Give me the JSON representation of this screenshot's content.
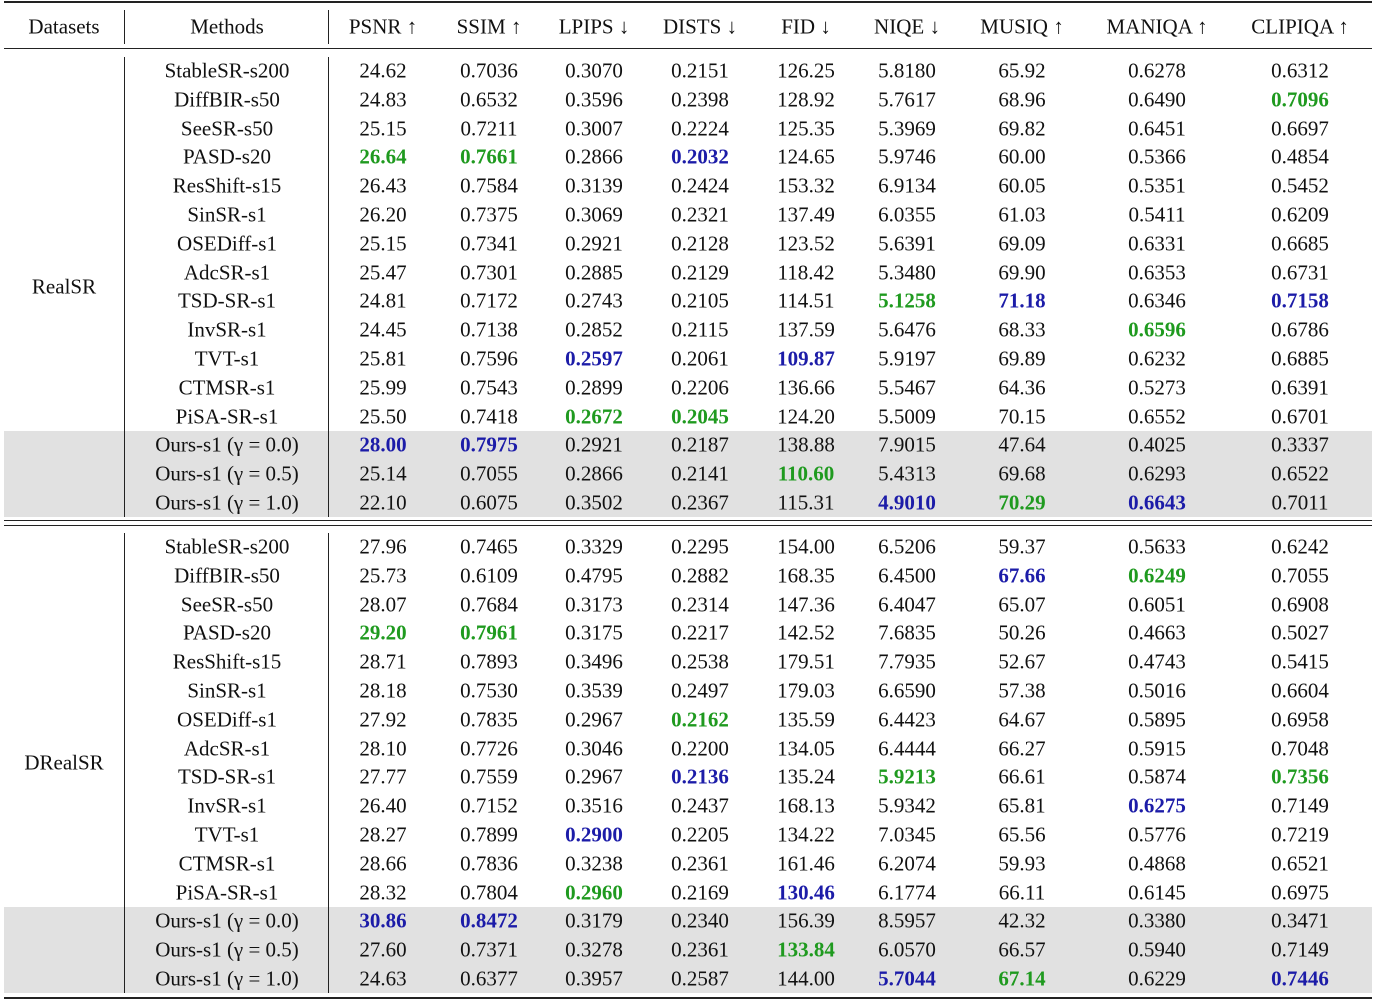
{
  "table": {
    "headers": [
      "Datasets",
      "Methods",
      "PSNR ↑",
      "SSIM ↑",
      "LPIPS ↓",
      "DISTS ↓",
      "FID ↓",
      "NIQE ↓",
      "MUSIQ ↑",
      "MANIQA ↑",
      "CLIPIQA ↑"
    ],
    "styles": {
      "best_color": "#1c1ca8",
      "second_color": "#1f9a1f",
      "shade_color": "#e1e1e1"
    },
    "groups": [
      {
        "dataset": "RealSR",
        "rows": [
          {
            "method": "StableSR-s200",
            "values": [
              "24.62",
              "0.7036",
              "0.3070",
              "0.2151",
              "126.25",
              "5.8180",
              "65.92",
              "0.6278",
              "0.6312"
            ]
          },
          {
            "method": "DiffBIR-s50",
            "values": [
              "24.83",
              "0.6532",
              "0.3596",
              "0.2398",
              "128.92",
              "5.7617",
              "68.96",
              "0.6490",
              "0.7096"
            ],
            "second": [
              8
            ]
          },
          {
            "method": "SeeSR-s50",
            "values": [
              "25.15",
              "0.7211",
              "0.3007",
              "0.2224",
              "125.35",
              "5.3969",
              "69.82",
              "0.6451",
              "0.6697"
            ]
          },
          {
            "method": "PASD-s20",
            "values": [
              "26.64",
              "0.7661",
              "0.2866",
              "0.2032",
              "124.65",
              "5.9746",
              "60.00",
              "0.5366",
              "0.4854"
            ],
            "best": [
              3
            ],
            "second": [
              0,
              1
            ]
          },
          {
            "method": "ResShift-s15",
            "values": [
              "26.43",
              "0.7584",
              "0.3139",
              "0.2424",
              "153.32",
              "6.9134",
              "60.05",
              "0.5351",
              "0.5452"
            ]
          },
          {
            "method": "SinSR-s1",
            "values": [
              "26.20",
              "0.7375",
              "0.3069",
              "0.2321",
              "137.49",
              "6.0355",
              "61.03",
              "0.5411",
              "0.6209"
            ]
          },
          {
            "method": "OSEDiff-s1",
            "values": [
              "25.15",
              "0.7341",
              "0.2921",
              "0.2128",
              "123.52",
              "5.6391",
              "69.09",
              "0.6331",
              "0.6685"
            ]
          },
          {
            "method": "AdcSR-s1",
            "values": [
              "25.47",
              "0.7301",
              "0.2885",
              "0.2129",
              "118.42",
              "5.3480",
              "69.90",
              "0.6353",
              "0.6731"
            ]
          },
          {
            "method": "TSD-SR-s1",
            "values": [
              "24.81",
              "0.7172",
              "0.2743",
              "0.2105",
              "114.51",
              "5.1258",
              "71.18",
              "0.6346",
              "0.7158"
            ],
            "best": [
              6,
              8
            ],
            "second": [
              5
            ]
          },
          {
            "method": "InvSR-s1",
            "values": [
              "24.45",
              "0.7138",
              "0.2852",
              "0.2115",
              "137.59",
              "5.6476",
              "68.33",
              "0.6596",
              "0.6786"
            ],
            "second": [
              7
            ]
          },
          {
            "method": "TVT-s1",
            "values": [
              "25.81",
              "0.7596",
              "0.2597",
              "0.2061",
              "109.87",
              "5.9197",
              "69.89",
              "0.6232",
              "0.6885"
            ],
            "best": [
              2,
              4
            ]
          },
          {
            "method": "CTMSR-s1",
            "values": [
              "25.99",
              "0.7543",
              "0.2899",
              "0.2206",
              "136.66",
              "5.5467",
              "64.36",
              "0.5273",
              "0.6391"
            ]
          },
          {
            "method": "PiSA-SR-s1",
            "values": [
              "25.50",
              "0.7418",
              "0.2672",
              "0.2045",
              "124.20",
              "5.5009",
              "70.15",
              "0.6552",
              "0.6701"
            ],
            "second": [
              2,
              3
            ]
          },
          {
            "method": "Ours-s1 (γ = 0.0)",
            "values": [
              "28.00",
              "0.7975",
              "0.2921",
              "0.2187",
              "138.88",
              "7.9015",
              "47.64",
              "0.4025",
              "0.3337"
            ],
            "best": [
              0,
              1
            ],
            "shaded": true
          },
          {
            "method": "Ours-s1 (γ = 0.5)",
            "values": [
              "25.14",
              "0.7055",
              "0.2866",
              "0.2141",
              "110.60",
              "5.4313",
              "69.68",
              "0.6293",
              "0.6522"
            ],
            "second": [
              4
            ],
            "shaded": true
          },
          {
            "method": "Ours-s1 (γ = 1.0)",
            "values": [
              "22.10",
              "0.6075",
              "0.3502",
              "0.2367",
              "115.31",
              "4.9010",
              "70.29",
              "0.6643",
              "0.7011"
            ],
            "best": [
              5,
              7
            ],
            "second": [
              6
            ],
            "shaded": true
          }
        ]
      },
      {
        "dataset": "DRealSR",
        "rows": [
          {
            "method": "StableSR-s200",
            "values": [
              "27.96",
              "0.7465",
              "0.3329",
              "0.2295",
              "154.00",
              "6.5206",
              "59.37",
              "0.5633",
              "0.6242"
            ]
          },
          {
            "method": "DiffBIR-s50",
            "values": [
              "25.73",
              "0.6109",
              "0.4795",
              "0.2882",
              "168.35",
              "6.4500",
              "67.66",
              "0.6249",
              "0.7055"
            ],
            "best": [
              6
            ],
            "second": [
              7
            ]
          },
          {
            "method": "SeeSR-s50",
            "values": [
              "28.07",
              "0.7684",
              "0.3173",
              "0.2314",
              "147.36",
              "6.4047",
              "65.07",
              "0.6051",
              "0.6908"
            ]
          },
          {
            "method": "PASD-s20",
            "values": [
              "29.20",
              "0.7961",
              "0.3175",
              "0.2217",
              "142.52",
              "7.6835",
              "50.26",
              "0.4663",
              "0.5027"
            ],
            "second": [
              0,
              1
            ]
          },
          {
            "method": "ResShift-s15",
            "values": [
              "28.71",
              "0.7893",
              "0.3496",
              "0.2538",
              "179.51",
              "7.7935",
              "52.67",
              "0.4743",
              "0.5415"
            ]
          },
          {
            "method": "SinSR-s1",
            "values": [
              "28.18",
              "0.7530",
              "0.3539",
              "0.2497",
              "179.03",
              "6.6590",
              "57.38",
              "0.5016",
              "0.6604"
            ]
          },
          {
            "method": "OSEDiff-s1",
            "values": [
              "27.92",
              "0.7835",
              "0.2967",
              "0.2162",
              "135.59",
              "6.4423",
              "64.67",
              "0.5895",
              "0.6958"
            ],
            "second": [
              3
            ]
          },
          {
            "method": "AdcSR-s1",
            "values": [
              "28.10",
              "0.7726",
              "0.3046",
              "0.2200",
              "134.05",
              "6.4444",
              "66.27",
              "0.5915",
              "0.7048"
            ]
          },
          {
            "method": "TSD-SR-s1",
            "values": [
              "27.77",
              "0.7559",
              "0.2967",
              "0.2136",
              "135.24",
              "5.9213",
              "66.61",
              "0.5874",
              "0.7356"
            ],
            "best": [
              3
            ],
            "second": [
              5,
              8
            ]
          },
          {
            "method": "InvSR-s1",
            "values": [
              "26.40",
              "0.7152",
              "0.3516",
              "0.2437",
              "168.13",
              "5.9342",
              "65.81",
              "0.6275",
              "0.7149"
            ],
            "best": [
              7
            ]
          },
          {
            "method": "TVT-s1",
            "values": [
              "28.27",
              "0.7899",
              "0.2900",
              "0.2205",
              "134.22",
              "7.0345",
              "65.56",
              "0.5776",
              "0.7219"
            ],
            "best": [
              2
            ]
          },
          {
            "method": "CTMSR-s1",
            "values": [
              "28.66",
              "0.7836",
              "0.3238",
              "0.2361",
              "161.46",
              "6.2074",
              "59.93",
              "0.4868",
              "0.6521"
            ]
          },
          {
            "method": "PiSA-SR-s1",
            "values": [
              "28.32",
              "0.7804",
              "0.2960",
              "0.2169",
              "130.46",
              "6.1774",
              "66.11",
              "0.6145",
              "0.6975"
            ],
            "best": [
              4
            ],
            "second": [
              2
            ]
          },
          {
            "method": "Ours-s1 (γ = 0.0)",
            "values": [
              "30.86",
              "0.8472",
              "0.3179",
              "0.2340",
              "156.39",
              "8.5957",
              "42.32",
              "0.3380",
              "0.3471"
            ],
            "best": [
              0,
              1
            ],
            "shaded": true
          },
          {
            "method": "Ours-s1 (γ = 0.5)",
            "values": [
              "27.60",
              "0.7371",
              "0.3278",
              "0.2361",
              "133.84",
              "6.0570",
              "66.57",
              "0.5940",
              "0.7149"
            ],
            "second": [
              4
            ],
            "shaded": true
          },
          {
            "method": "Ours-s1 (γ = 1.0)",
            "values": [
              "24.63",
              "0.6377",
              "0.3957",
              "0.2587",
              "144.00",
              "5.7044",
              "67.14",
              "0.6229",
              "0.7446"
            ],
            "best": [
              5,
              8
            ],
            "second": [
              6
            ],
            "shaded": true
          }
        ]
      }
    ]
  }
}
